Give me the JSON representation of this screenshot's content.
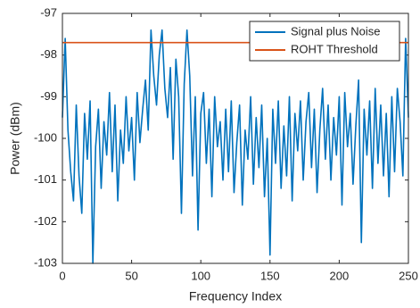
{
  "chart_data": {
    "type": "line",
    "xlabel": "Frequency Index",
    "ylabel": "Power (dBm)",
    "xlim": [
      0,
      250
    ],
    "xticks": [
      0,
      50,
      100,
      150,
      200,
      250
    ],
    "ylim": [
      -103,
      -97
    ],
    "yticks": [
      -103,
      -102,
      -101,
      -100,
      -99,
      -98,
      -97
    ],
    "legend": "northeast",
    "grid": false,
    "series": [
      {
        "name": "Signal plus Noise",
        "color": "#0072BD",
        "x": [
          0,
          2,
          4,
          6,
          8,
          10,
          12,
          14,
          16,
          18,
          20,
          22,
          24,
          26,
          28,
          30,
          32,
          34,
          36,
          38,
          40,
          42,
          44,
          46,
          48,
          50,
          52,
          54,
          56,
          58,
          60,
          62,
          64,
          66,
          68,
          70,
          72,
          74,
          76,
          78,
          80,
          82,
          84,
          86,
          88,
          90,
          92,
          94,
          96,
          98,
          100,
          102,
          104,
          106,
          108,
          110,
          112,
          114,
          116,
          118,
          120,
          122,
          124,
          126,
          128,
          130,
          132,
          134,
          136,
          138,
          140,
          142,
          144,
          146,
          148,
          150,
          152,
          154,
          156,
          158,
          160,
          162,
          164,
          166,
          168,
          170,
          172,
          174,
          176,
          178,
          180,
          182,
          184,
          186,
          188,
          190,
          192,
          194,
          196,
          198,
          200,
          202,
          204,
          206,
          208,
          210,
          212,
          214,
          216,
          218,
          220,
          222,
          224,
          226,
          228,
          230,
          232,
          234,
          236,
          238,
          240,
          242,
          244,
          246,
          248,
          250
        ],
        "values": [
          -99.5,
          -97.6,
          -99.8,
          -100.8,
          -101.5,
          -99.2,
          -100.9,
          -101.8,
          -99.4,
          -100.5,
          -99.1,
          -103.0,
          -100.2,
          -99.3,
          -101.2,
          -99.6,
          -100.4,
          -98.9,
          -100.8,
          -99.2,
          -101.5,
          -99.8,
          -100.6,
          -99.0,
          -100.3,
          -99.5,
          -101.0,
          -98.9,
          -100.1,
          -99.3,
          -98.6,
          -99.8,
          -97.4,
          -98.5,
          -99.2,
          -98.0,
          -97.4,
          -98.8,
          -99.5,
          -98.3,
          -100.5,
          -98.1,
          -99.0,
          -101.8,
          -98.7,
          -97.4,
          -98.5,
          -100.9,
          -99.0,
          -102.2,
          -99.4,
          -98.9,
          -100.6,
          -99.3,
          -101.4,
          -99.0,
          -100.2,
          -99.6,
          -101.0,
          -99.3,
          -100.8,
          -99.1,
          -101.3,
          -100.1,
          -99.2,
          -101.6,
          -99.8,
          -100.5,
          -99.0,
          -101.1,
          -99.5,
          -100.7,
          -99.2,
          -101.4,
          -100.0,
          -102.8,
          -99.3,
          -100.6,
          -99.1,
          -101.2,
          -99.7,
          -100.9,
          -99.0,
          -101.5,
          -99.4,
          -100.3,
          -99.1,
          -101.0,
          -99.6,
          -98.9,
          -100.7,
          -99.3,
          -101.3,
          -99.8,
          -98.8,
          -100.5,
          -99.2,
          -101.0,
          -99.5,
          -100.4,
          -99.0,
          -101.6,
          -98.9,
          -100.2,
          -99.4,
          -101.1,
          -99.7,
          -98.6,
          -102.5,
          -99.3,
          -100.4,
          -99.1,
          -101.2,
          -98.8,
          -100.6,
          -99.2,
          -100.9,
          -99.4,
          -101.4,
          -99.0,
          -100.8,
          -98.8,
          -99.6,
          -100.9,
          -97.6,
          -99.5
        ]
      },
      {
        "name": "ROHT Threshold",
        "color": "#D95319",
        "x": [
          0,
          250
        ],
        "values": [
          -97.7,
          -97.7
        ]
      }
    ]
  }
}
